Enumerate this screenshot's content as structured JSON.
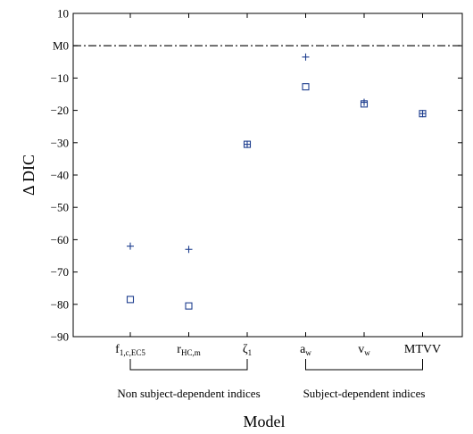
{
  "chart_data": {
    "type": "scatter",
    "title": "",
    "xlabel": "Model",
    "ylabel": "Δ DIC",
    "ylim": [
      -90,
      10
    ],
    "yticks": [
      10,
      0,
      -10,
      -20,
      -30,
      -40,
      -50,
      -60,
      -70,
      -80,
      -90
    ],
    "ytick_labels": [
      "10",
      "M0",
      "−10",
      "−20",
      "−30",
      "−40",
      "−50",
      "−60",
      "−70",
      "−80",
      "−90"
    ],
    "reference_line": {
      "y": 0,
      "style": "dash-dot"
    },
    "grid": false,
    "legend": "none",
    "color": "#1f3f8f",
    "categories": [
      {
        "main": "f",
        "sub": "1,c,EC5"
      },
      {
        "main": "r",
        "sub": "HC,m"
      },
      {
        "main": "ζ",
        "sub": "1"
      },
      {
        "main": "a",
        "sub": "w"
      },
      {
        "main": "v",
        "sub": "w"
      },
      {
        "main": "MTVV",
        "sub": ""
      }
    ],
    "series": [
      {
        "marker": "plus",
        "values": [
          -62,
          -63,
          -30.5,
          -3.5,
          -17.5,
          -21
        ]
      },
      {
        "marker": "square",
        "values": [
          -78.5,
          -80.5,
          -30.5,
          -12.7,
          -18,
          -21
        ]
      }
    ],
    "groups": [
      {
        "label": "Non subject-dependent indices",
        "from": 0,
        "to": 2
      },
      {
        "label": "Subject-dependent indices",
        "from": 3,
        "to": 5
      }
    ]
  }
}
